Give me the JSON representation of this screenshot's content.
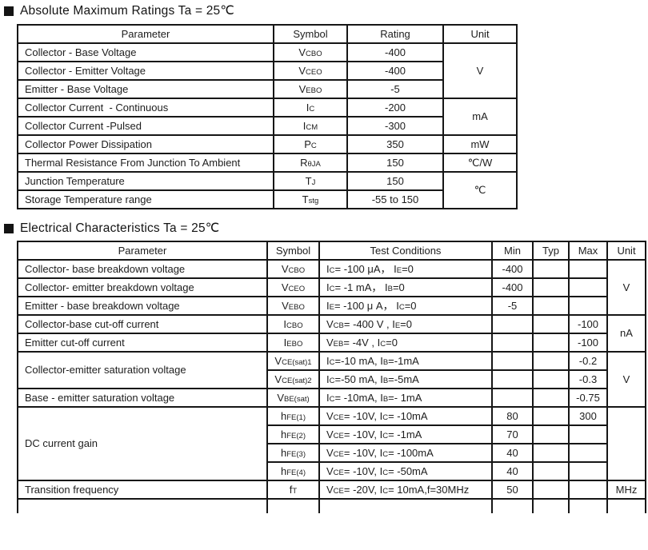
{
  "colors": {
    "background": "#ffffff",
    "text": "#1d1d1d",
    "border": "#161616",
    "bullet": "#141414"
  },
  "icons": {
    "section_bullet": "black-square-icon"
  },
  "sections": {
    "absolute_maximum": {
      "title": "Absolute Maximum Ratings Ta = 25℃",
      "headers": [
        "Parameter",
        "Symbol",
        "Rating",
        "Unit"
      ],
      "rows": [
        {
          "parameter": "Collector - Base Voltage",
          "symbol": "V~CBO~",
          "rating": "-400",
          "unit": "V"
        },
        {
          "parameter": "Collector - Emitter Voltage",
          "symbol": "V~CEO~",
          "rating": "-400"
        },
        {
          "parameter": "Emitter - Base Voltage",
          "symbol": "V~EBO~",
          "rating": "-5"
        },
        {
          "parameter": "Collector Current  - Continuous",
          "symbol": "I~C~",
          "rating": "-200",
          "unit": "mA"
        },
        {
          "parameter": "Collector Current -Pulsed",
          "symbol": "I~CM~",
          "rating": "-300"
        },
        {
          "parameter": "Collector Power Dissipation",
          "symbol": "P~C~",
          "rating": "350",
          "unit": "mW"
        },
        {
          "parameter": "Thermal Resistance From Junction To Ambient",
          "symbol": "R~θJA~",
          "rating": "150",
          "unit": "℃/W"
        },
        {
          "parameter": "Junction Temperature",
          "symbol": "T~J~",
          "rating": "150",
          "unit": "℃"
        },
        {
          "parameter": "Storage Temperature range",
          "symbol": "T~stg~",
          "rating": "-55 to 150"
        }
      ]
    },
    "electrical": {
      "title": "Electrical Characteristics Ta = 25℃",
      "headers": [
        "Parameter",
        "Symbol",
        "Test Conditions",
        "Min",
        "Typ",
        "Max",
        "Unit"
      ],
      "rows": [
        {
          "parameter": "Collector- base breakdown voltage",
          "symbol": "V~CBO~",
          "test_conditions": "I~C~= -100 μA， I~E~=0",
          "min": "-400",
          "unit": "V"
        },
        {
          "parameter": "Collector- emitter breakdown voltage",
          "symbol": "V~CEO~",
          "test_conditions": "I~C~= -1 mA， I~B~=0",
          "min": "-400"
        },
        {
          "parameter": "Emitter - base breakdown voltage",
          "symbol": "V~EBO~",
          "test_conditions": "I~E~= -100 μ A， I~C~=0",
          "min": "-5"
        },
        {
          "parameter": "Collector-base cut-off current",
          "symbol": "I~CBO~",
          "test_conditions": "V~CB~= -400 V , I~E~=0",
          "max": "-100",
          "unit": "nA"
        },
        {
          "parameter": "Emitter cut-off current",
          "symbol": "I~EBO~",
          "test_conditions": "V~EB~= -4V , I~C~=0",
          "max": "-100"
        },
        {
          "parameter": "Collector-emitter saturation voltage",
          "symbol": "V~CE(sat)1~",
          "test_conditions": "I~C~=-10 mA, I~B~=-1mA",
          "max": "-0.2",
          "unit": "V"
        },
        {
          "symbol": "V~CE(sat)2~",
          "test_conditions": "I~C~=-50 mA, I~B~=-5mA",
          "max": "-0.3"
        },
        {
          "parameter": "Base - emitter saturation voltage",
          "symbol": "V~BE(sat)~",
          "test_conditions": "I~C~= -10mA, I~B~=- 1mA",
          "max": "-0.75"
        },
        {
          "parameter": "DC current gain",
          "symbol": "h~FE(1)~",
          "test_conditions": "V~CE~= -10V, I~C~= -10mA",
          "min": "80",
          "max": "300"
        },
        {
          "symbol": "h~FE(2)~",
          "test_conditions": "V~CE~= -10V, I~C~= -1mA",
          "min": "70"
        },
        {
          "symbol": "h~FE(3)~",
          "test_conditions": "V~CE~= -10V, I~C~= -100mA",
          "min": "40"
        },
        {
          "symbol": "h~FE(4)~",
          "test_conditions": "V~CE~= -10V, I~C~= -50mA",
          "min": "40"
        },
        {
          "parameter": "Transition frequency",
          "symbol": "f~T~",
          "test_conditions": "V~CE~= -20V, I~C~= 10mA,f=30MHz",
          "min": "50",
          "unit": "MHz"
        }
      ]
    }
  }
}
